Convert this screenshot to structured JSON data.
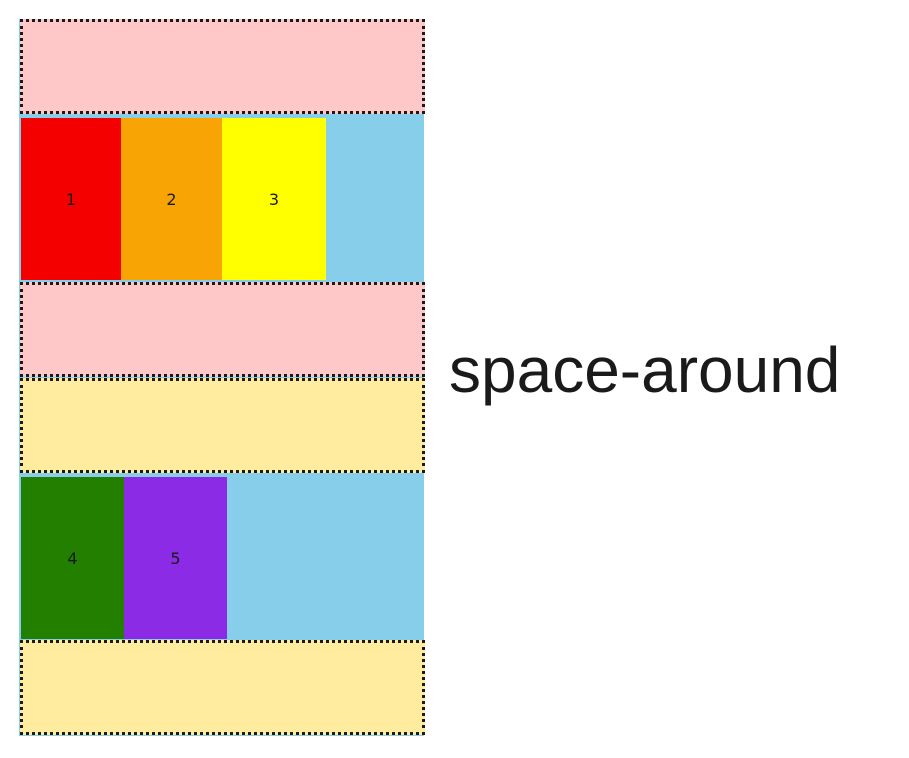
{
  "label": "space-around",
  "colors": {
    "container": "#87CEEB",
    "spacer_pink": "#FFC8C8",
    "spacer_yellow": "#FFEC9F"
  },
  "rows": [
    {
      "items": [
        {
          "label": "1",
          "color": "#F50000"
        },
        {
          "label": "2",
          "color": "#F8A405"
        },
        {
          "label": "3",
          "color": "#FFFF00"
        }
      ]
    },
    {
      "items": [
        {
          "label": "4",
          "color": "#237F00"
        },
        {
          "label": "5",
          "color": "#8B2BE6"
        }
      ]
    }
  ]
}
